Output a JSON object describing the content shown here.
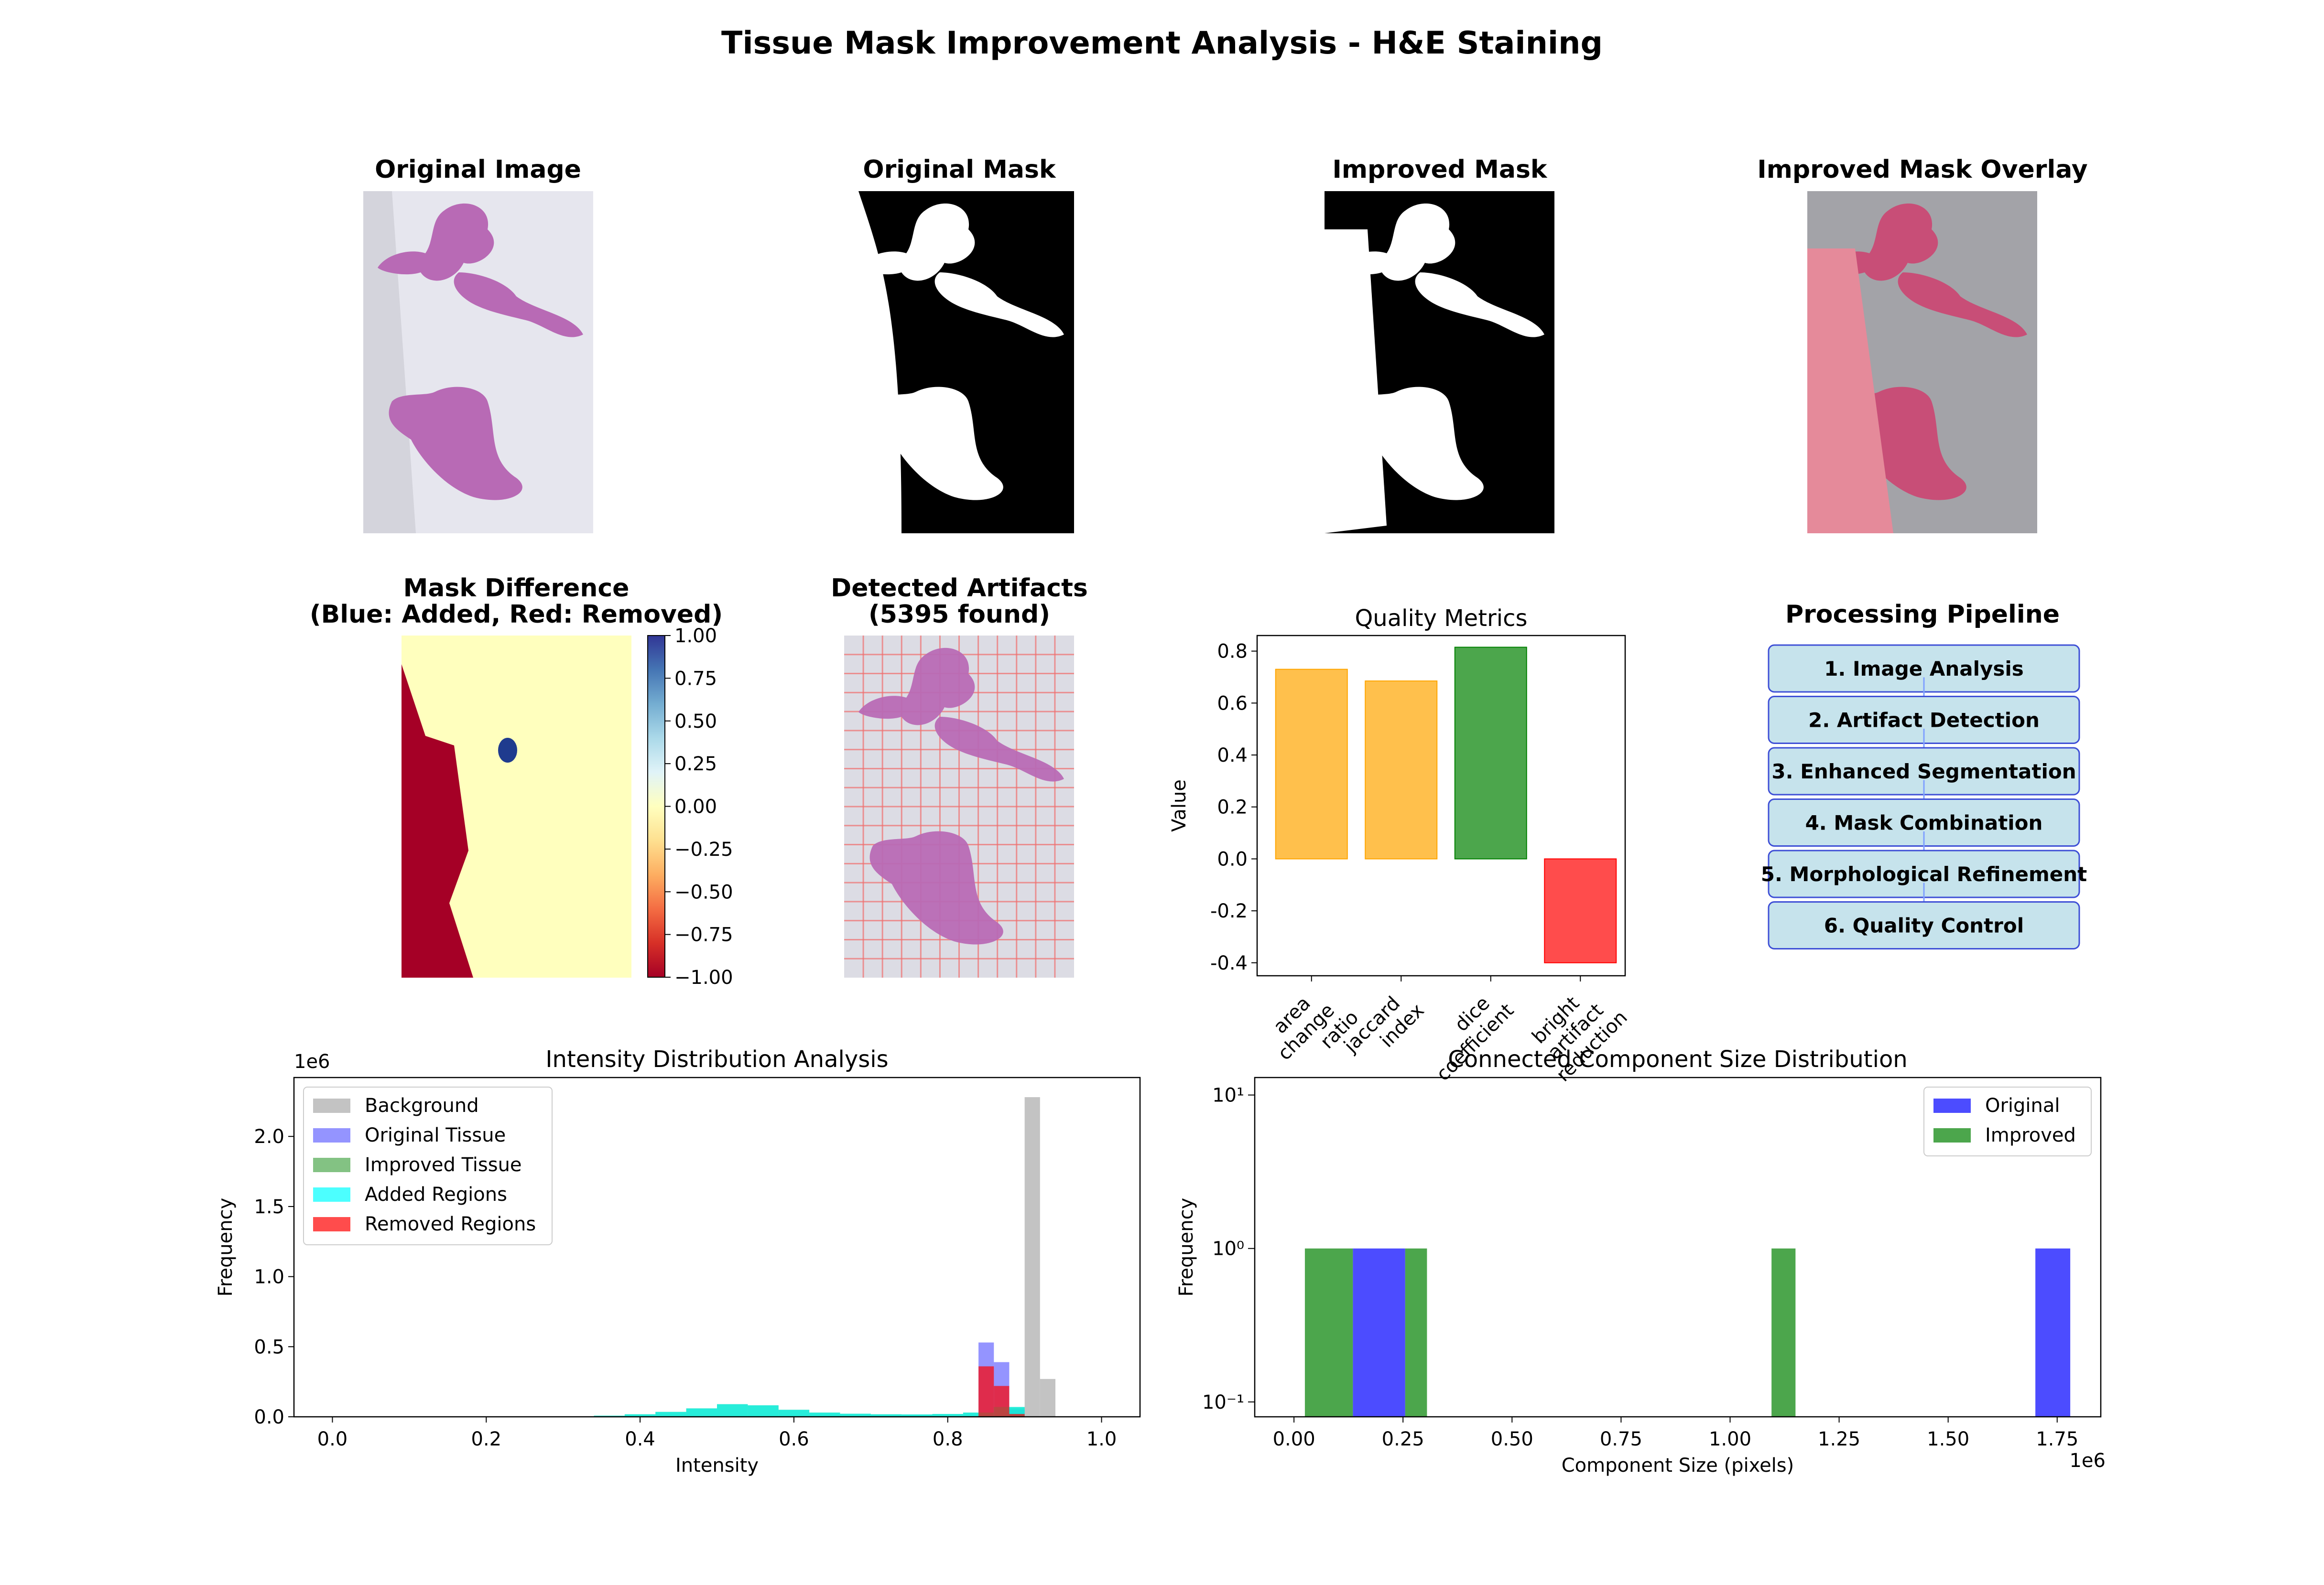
{
  "suptitle": "Tissue Mask Improvement Analysis - H&E Staining",
  "panels": {
    "original_image": "Original Image",
    "original_mask": "Original Mask",
    "improved_mask": "Improved Mask",
    "overlay": "Improved Mask Overlay",
    "difference_line1": "Mask Difference",
    "difference_line2": "(Blue: Added, Red: Removed)",
    "artifacts_line1": "Detected Artifacts",
    "artifacts_line2": "(5395 found)"
  },
  "colors": {
    "tissue": "#b86ab5",
    "slide_bg": "#e6e6ee",
    "mask_black": "#000000",
    "mask_white": "#ffffff",
    "overlay_bg": "#a3a3a8",
    "overlay_tissue": "#cf3f6e",
    "diff_zero": "#ffffbe",
    "diff_added": "#1f3b8e",
    "diff_removed": "#a50026",
    "pipeline_fill": "#c6e3ec",
    "pipeline_edge": "#3e4fd6"
  },
  "colorbar": {
    "ticks": [
      "1.00",
      "0.75",
      "0.50",
      "0.25",
      "0.00",
      "−0.25",
      "−0.50",
      "−0.75",
      "−1.00"
    ],
    "stops": [
      "#313695",
      "#4575b4",
      "#74add1",
      "#abd9e9",
      "#e0f3f8",
      "#ffffbf",
      "#fee090",
      "#fdae61",
      "#f46d43",
      "#d73027",
      "#a50026"
    ]
  },
  "pipeline": {
    "title": "Processing Pipeline",
    "steps": [
      "1. Image Analysis",
      "2. Artifact Detection",
      "3. Enhanced Segmentation",
      "4. Mask Combination",
      "5. Morphological Refinement",
      "6. Quality Control"
    ]
  },
  "chart_data": [
    {
      "type": "bar",
      "title": "Quality Metrics",
      "ylabel": "Value",
      "categories": [
        "area\nchange\nratio",
        "jaccard\nindex",
        "dice\ncoefficient",
        "bright\nartifact\nreduction"
      ],
      "values": [
        0.73,
        0.685,
        0.815,
        -0.4
      ],
      "colors": [
        "#ffa500",
        "#ffa500",
        "#008000",
        "#ff0000"
      ],
      "ylim": [
        -0.45,
        0.86
      ],
      "yticks": [
        -0.4,
        -0.2,
        0.0,
        0.2,
        0.4,
        0.6,
        0.8
      ]
    },
    {
      "type": "histogram",
      "title": "Intensity Distribution Analysis",
      "xlabel": "Intensity",
      "ylabel": "Frequency",
      "offset_label": "1e6",
      "xlim": [
        -0.05,
        1.05
      ],
      "ylim": [
        0,
        2.42
      ],
      "xticks": [
        0.0,
        0.2,
        0.4,
        0.6,
        0.8,
        1.0
      ],
      "yticks": [
        0.0,
        0.5,
        1.0,
        1.5,
        2.0
      ],
      "legend_position": "upper-left",
      "series": [
        {
          "name": "Background",
          "color": "#a9a9a9",
          "bins": [
            [
              0.88,
              0.9,
              0.06
            ],
            [
              0.9,
              0.92,
              2.28
            ],
            [
              0.92,
              0.94,
              0.27
            ]
          ]
        },
        {
          "name": "Original Tissue",
          "color": "#6666ff",
          "bins": [
            [
              0.84,
              0.86,
              0.53
            ],
            [
              0.86,
              0.88,
              0.39
            ],
            [
              0.88,
              0.9,
              0.05
            ]
          ]
        },
        {
          "name": "Improved Tissue",
          "color": "#4fa84f",
          "bins": [
            [
              0.3,
              0.34,
              0.003
            ],
            [
              0.34,
              0.38,
              0.008
            ],
            [
              0.38,
              0.42,
              0.018
            ],
            [
              0.42,
              0.46,
              0.035
            ],
            [
              0.46,
              0.5,
              0.06
            ],
            [
              0.5,
              0.54,
              0.09
            ],
            [
              0.54,
              0.58,
              0.082
            ],
            [
              0.58,
              0.62,
              0.05
            ],
            [
              0.62,
              0.66,
              0.03
            ],
            [
              0.66,
              0.7,
              0.022
            ],
            [
              0.7,
              0.74,
              0.018
            ],
            [
              0.74,
              0.78,
              0.017
            ],
            [
              0.78,
              0.82,
              0.02
            ],
            [
              0.82,
              0.86,
              0.03
            ],
            [
              0.86,
              0.9,
              0.07
            ]
          ]
        },
        {
          "name": "Added Regions",
          "color": "#00ffff",
          "bins": [
            [
              0.3,
              0.34,
              0.003
            ],
            [
              0.34,
              0.38,
              0.008
            ],
            [
              0.38,
              0.42,
              0.018
            ],
            [
              0.42,
              0.46,
              0.035
            ],
            [
              0.46,
              0.5,
              0.06
            ],
            [
              0.5,
              0.54,
              0.09
            ],
            [
              0.54,
              0.58,
              0.082
            ],
            [
              0.58,
              0.62,
              0.05
            ],
            [
              0.62,
              0.66,
              0.03
            ],
            [
              0.66,
              0.7,
              0.022
            ],
            [
              0.7,
              0.74,
              0.018
            ],
            [
              0.74,
              0.78,
              0.017
            ],
            [
              0.78,
              0.82,
              0.02
            ],
            [
              0.82,
              0.86,
              0.03
            ],
            [
              0.86,
              0.9,
              0.07
            ]
          ]
        },
        {
          "name": "Removed Regions",
          "color": "#ff0000",
          "bins": [
            [
              0.84,
              0.86,
              0.36
            ],
            [
              0.86,
              0.88,
              0.22
            ],
            [
              0.88,
              0.9,
              0.02
            ]
          ]
        }
      ]
    },
    {
      "type": "histogram",
      "title": "Connected Component Size Distribution",
      "xlabel": "Component Size (pixels)",
      "ylabel": "Frequency",
      "offset_label": "1e6",
      "yscale": "log",
      "xlim": [
        -0.09,
        1.85
      ],
      "ylim": [
        0.08,
        13
      ],
      "xticks": [
        "0.00",
        "0.25",
        "0.50",
        "0.75",
        "1.00",
        "1.25",
        "1.50",
        "1.75"
      ],
      "yticks": [
        "10⁻¹",
        "10⁰",
        "10¹"
      ],
      "legend_position": "upper-right",
      "series": [
        {
          "name": "Original",
          "color": "#0000ff",
          "bins": [
            [
              0.135,
              0.255,
              1
            ],
            [
              1.7,
              1.78,
              1
            ]
          ]
        },
        {
          "name": "Improved",
          "color": "#008000",
          "bins": [
            [
              0.025,
              0.135,
              1
            ],
            [
              0.255,
              0.305,
              1
            ],
            [
              1.095,
              1.15,
              1
            ]
          ]
        }
      ]
    }
  ]
}
